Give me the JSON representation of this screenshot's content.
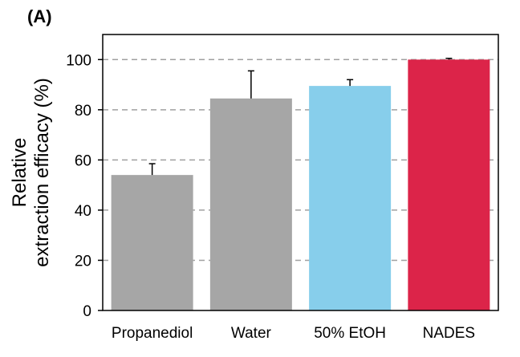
{
  "chart_data": {
    "type": "bar",
    "panel_label": "(A)",
    "ylabel_line1": "Relative",
    "ylabel_line2": "extraction efficacy (%)",
    "xlabel": "",
    "ylim": [
      0,
      110
    ],
    "yticks": [
      0,
      20,
      40,
      60,
      80,
      100
    ],
    "categories": [
      "Propanediol",
      "Water",
      "50% EtOH",
      "NADES"
    ],
    "values": [
      54,
      84.5,
      89.5,
      100
    ],
    "errors": [
      4.5,
      11,
      2.5,
      0.5
    ],
    "bar_colors": [
      "#a6a6a6",
      "#a6a6a6",
      "#87ceeb",
      "#dc2449"
    ],
    "grid": "horizontal dashed at y ticks",
    "legend": "none"
  }
}
